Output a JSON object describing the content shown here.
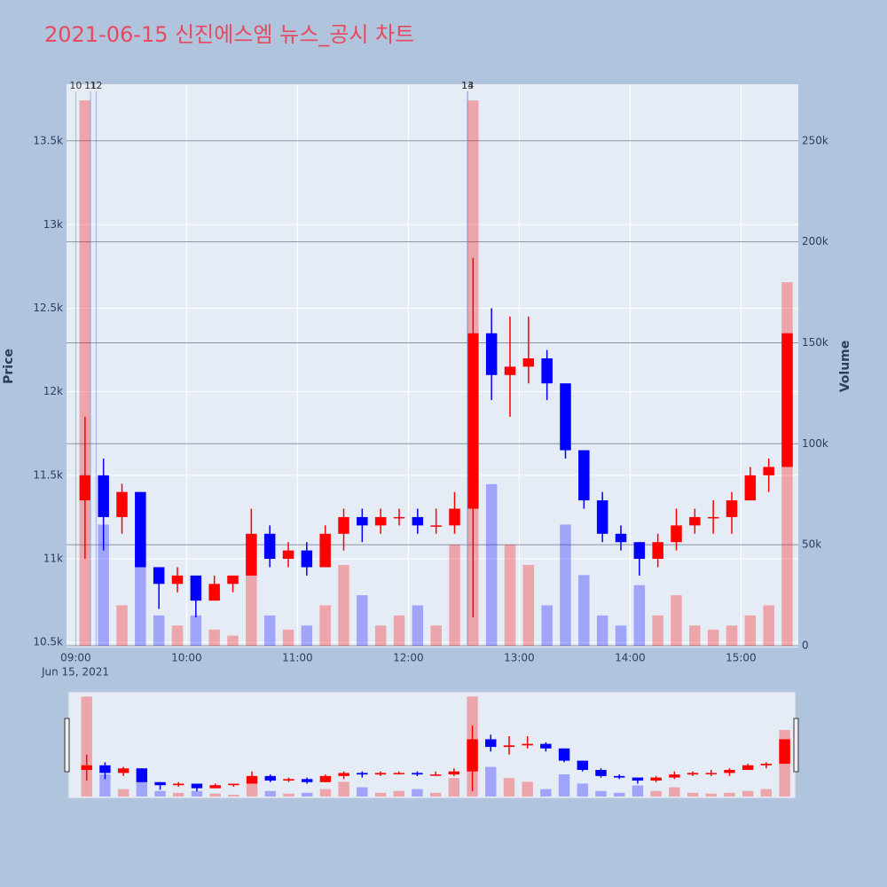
{
  "chart_data": {
    "type": "candlestick",
    "title": "2021-06-15 신진에스엠 뉴스_공시 차트",
    "x": [
      "2021-06-15 09:00",
      "2021-06-15 09:10",
      "2021-06-15 09:20",
      "2021-06-15 09:30",
      "2021-06-15 09:40",
      "2021-06-15 09:50",
      "2021-06-15 10:00",
      "2021-06-15 10:10",
      "2021-06-15 10:20",
      "2021-06-15 10:30",
      "2021-06-15 10:40",
      "2021-06-15 10:50",
      "2021-06-15 11:00",
      "2021-06-15 11:10",
      "2021-06-15 11:20",
      "2021-06-15 11:30",
      "2021-06-15 11:40",
      "2021-06-15 11:50",
      "2021-06-15 12:00",
      "2021-06-15 12:10",
      "2021-06-15 12:20",
      "2021-06-15 12:30",
      "2021-06-15 12:40",
      "2021-06-15 12:50",
      "2021-06-15 13:00",
      "2021-06-15 13:10",
      "2021-06-15 13:20",
      "2021-06-15 13:30",
      "2021-06-15 13:40",
      "2021-06-15 13:50",
      "2021-06-15 14:00",
      "2021-06-15 14:10",
      "2021-06-15 14:20",
      "2021-06-15 14:30",
      "2021-06-15 14:40",
      "2021-06-15 14:50",
      "2021-06-15 15:00",
      "2021-06-15 15:10",
      "2021-06-15 15:20"
    ],
    "open": [
      11350,
      11500,
      11250,
      11400,
      10950,
      10850,
      10900,
      10750,
      10850,
      10900,
      11150,
      11000,
      11050,
      10950,
      11150,
      11250,
      11200,
      11250,
      11250,
      11200,
      11200,
      11300,
      12350,
      12100,
      12150,
      12200,
      12050,
      11650,
      11350,
      11150,
      11100,
      11000,
      11100,
      11200,
      11250,
      11250,
      11350,
      11500,
      11550
    ],
    "high": [
      11850,
      11600,
      11450,
      11400,
      10950,
      10950,
      10900,
      10900,
      10900,
      11300,
      11200,
      11100,
      11100,
      11200,
      11300,
      11300,
      11300,
      11300,
      11300,
      11300,
      11400,
      12800,
      12500,
      12450,
      12450,
      12250,
      12050,
      11650,
      11400,
      11200,
      11100,
      11150,
      11300,
      11300,
      11350,
      11400,
      11550,
      11600,
      12350
    ],
    "low": [
      11000,
      11050,
      11150,
      10950,
      10700,
      10800,
      10650,
      10750,
      10800,
      10900,
      10950,
      10950,
      10900,
      10950,
      11050,
      11100,
      11150,
      11200,
      11150,
      11150,
      11150,
      10650,
      11950,
      11850,
      12050,
      11950,
      11600,
      11300,
      11100,
      11050,
      10900,
      10950,
      11050,
      11150,
      11150,
      11150,
      11350,
      11400,
      11550
    ],
    "close": [
      11500,
      11250,
      11400,
      10950,
      10850,
      10900,
      10750,
      10850,
      10900,
      11150,
      11000,
      11050,
      10950,
      11150,
      11250,
      11200,
      11250,
      11250,
      11200,
      11200,
      11300,
      12350,
      12100,
      12150,
      12200,
      12050,
      11650,
      11350,
      11150,
      11100,
      11000,
      11100,
      11200,
      11250,
      11250,
      11350,
      11500,
      11550,
      12350
    ],
    "volume": [
      270000,
      60000,
      20000,
      50000,
      15000,
      10000,
      15000,
      8000,
      5000,
      35000,
      15000,
      8000,
      10000,
      20000,
      40000,
      25000,
      10000,
      15000,
      20000,
      10000,
      50000,
      270000,
      80000,
      50000,
      40000,
      20000,
      60000,
      35000,
      15000,
      10000,
      30000,
      15000,
      25000,
      10000,
      8000,
      10000,
      15000,
      20000,
      180000
    ],
    "increasing_color": "#ff0000",
    "decreasing_color": "#0000ff",
    "xlim": [
      "2021-06-15 08:55",
      "2021-06-15 15:31"
    ],
    "xticks": [
      {
        "value": "2021-06-15 09:00",
        "label": "09:00"
      },
      {
        "value": "2021-06-15 10:00",
        "label": "10:00"
      },
      {
        "value": "2021-06-15 11:00",
        "label": "11:00"
      },
      {
        "value": "2021-06-15 12:00",
        "label": "12:00"
      },
      {
        "value": "2021-06-15 13:00",
        "label": "13:00"
      },
      {
        "value": "2021-06-15 14:00",
        "label": "14:00"
      },
      {
        "value": "2021-06-15 15:00",
        "label": "15:00"
      }
    ],
    "x_sublabel": "Jun 15, 2021",
    "ylabel": "Price",
    "y2label": "Volume",
    "ylim": [
      10480,
      13840
    ],
    "yticks": [
      {
        "value": 10500,
        "label": "10.5k"
      },
      {
        "value": 11000,
        "label": "11k"
      },
      {
        "value": 11500,
        "label": "11.5k"
      },
      {
        "value": 12000,
        "label": "12k"
      },
      {
        "value": 12500,
        "label": "12.5k"
      },
      {
        "value": 13000,
        "label": "13k"
      },
      {
        "value": 13500,
        "label": "13.5k"
      }
    ],
    "y2lim": [
      0,
      278000
    ],
    "y2ticks": [
      0,
      {
        "value": 50000,
        "label": "50k"
      },
      {
        "value": 100000,
        "label": "100k"
      },
      {
        "value": 150000,
        "label": "150k"
      },
      {
        "value": 200000,
        "label": "200k"
      },
      {
        "value": 250000,
        "label": "250k"
      }
    ],
    "annotations": [
      {
        "x": "2021-06-15 09:00",
        "text": "10"
      },
      {
        "x": "2021-06-15 09:08",
        "text": "11"
      },
      {
        "x": "2021-06-15 09:11",
        "text": "12"
      },
      {
        "x": "2021-06-15 12:32",
        "text": "13"
      },
      {
        "x": "2021-06-15 12:32",
        "text": "14"
      }
    ]
  }
}
